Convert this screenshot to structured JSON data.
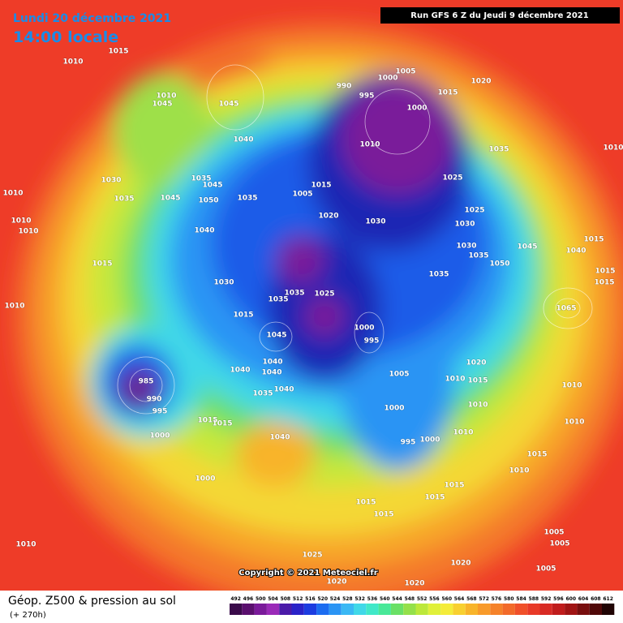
{
  "header": {
    "date": "Lundi 20 décembre 2021",
    "time": "14:00 locale",
    "run": "Run GFS 6 Z du Jeudi 9 décembre 2021"
  },
  "copyright": "Copyright © 2021 Meteociel.fr",
  "footer": {
    "title": "Géop. Z500 & pression au sol",
    "lead": "(+ 270h)"
  },
  "scale": {
    "ticks": [
      492,
      496,
      500,
      504,
      508,
      512,
      516,
      520,
      524,
      528,
      532,
      536,
      540,
      544,
      548,
      552,
      556,
      560,
      564,
      568,
      572,
      576,
      580,
      584,
      588,
      592,
      596,
      600,
      604,
      608,
      612
    ],
    "colors": [
      "#3a0a4a",
      "#5a0f6e",
      "#7a1a9a",
      "#9a2ab8",
      "#4a1aa8",
      "#2a22c8",
      "#1c3ce0",
      "#1c6cf0",
      "#2a94f4",
      "#3ab8f4",
      "#40d8e8",
      "#40e8c8",
      "#48e898",
      "#6ae066",
      "#94e04a",
      "#bce83a",
      "#e0f03a",
      "#f4ec3a",
      "#f8d030",
      "#f8b42a",
      "#f89a2a",
      "#f5822a",
      "#f26a2a",
      "#f0502a",
      "#e83a28",
      "#d82a24",
      "#c01c1c",
      "#a01414",
      "#780e0e",
      "#500808",
      "#200404"
    ]
  },
  "pressure_labels": [
    1015,
    1010,
    1010,
    1045,
    1045,
    1040,
    1030,
    1035,
    1045,
    1035,
    1045,
    1050,
    1035,
    1010,
    1010,
    1010,
    1015,
    1040,
    1030,
    1015,
    1010,
    990,
    995,
    1000,
    1005,
    1000,
    1015,
    1020,
    1010,
    1035,
    1025,
    1005,
    1015,
    1020,
    1030,
    1030,
    1025,
    1030,
    1035,
    1050,
    1045,
    1035,
    1040,
    1015,
    1015,
    1015,
    1035,
    1035,
    1025,
    1000,
    995,
    1045,
    1040,
    1040,
    1040,
    1035,
    1040,
    1005,
    1020,
    1010,
    1015,
    1000,
    995,
    1000,
    1010,
    1010,
    985,
    990,
    995,
    1000,
    1015,
    1015,
    1040,
    1000,
    1010,
    1010,
    1015,
    1010,
    1015,
    1015,
    1015,
    1015,
    1025,
    1020,
    1020,
    1020,
    1010,
    1005,
    1005,
    1005,
    1065,
    1010
  ]
}
